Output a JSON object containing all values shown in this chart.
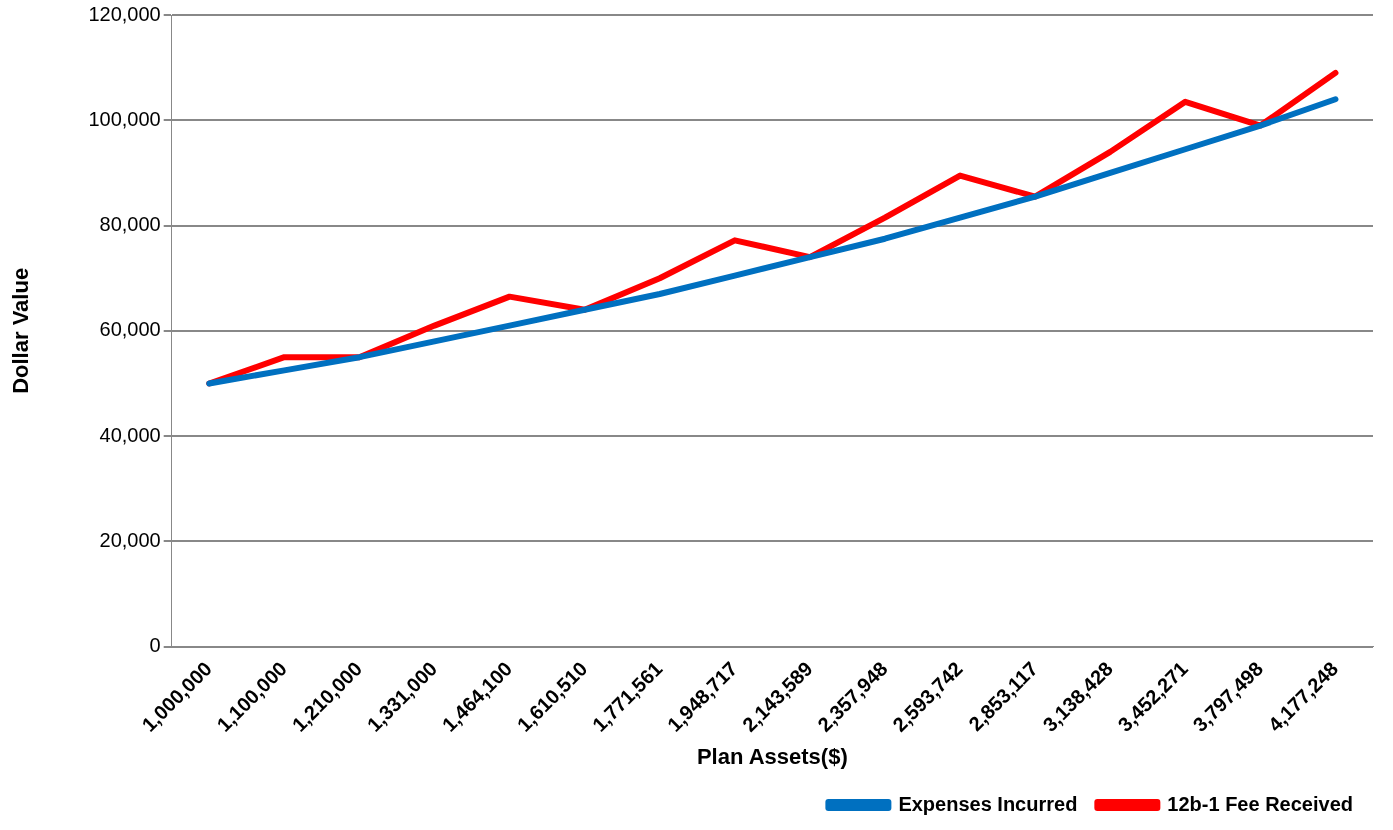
{
  "chart_data": {
    "type": "line",
    "xlabel": "Plan Assets($)",
    "ylabel": "Dollar Value",
    "categories": [
      "1,000,000",
      "1,100,000",
      "1,210,000",
      "1,331,000",
      "1,464,100",
      "1,610,510",
      "1,771,561",
      "1,948,717",
      "2,143,589",
      "2,357,948",
      "2,593,742",
      "2,853,117",
      "3,138,428",
      "3,452,271",
      "3,797,498",
      "4,177,248"
    ],
    "series": [
      {
        "name": "Expenses Incurred",
        "color": "#0070c0",
        "values": [
          50000,
          52500,
          55000,
          58000,
          61000,
          64000,
          67000,
          70500,
          74000,
          77500,
          81500,
          85500,
          90000,
          94500,
          99000,
          104000
        ]
      },
      {
        "name": "12b-1 Fee Received",
        "color": "#ff0000",
        "values": [
          50000,
          55000,
          55000,
          61000,
          66500,
          64000,
          70000,
          77200,
          74000,
          81500,
          89500,
          85500,
          94000,
          103500,
          99000,
          109000
        ]
      }
    ],
    "ylim": [
      0,
      120000
    ],
    "yticks": [
      {
        "value": 0,
        "label": "0"
      },
      {
        "value": 20000,
        "label": "20,000"
      },
      {
        "value": 40000,
        "label": "40,000"
      },
      {
        "value": 60000,
        "label": "60,000"
      },
      {
        "value": 80000,
        "label": "80,000"
      },
      {
        "value": 100000,
        "label": "100,000"
      },
      {
        "value": 120000,
        "label": "120,000"
      }
    ],
    "grid": "y",
    "legend": "bottom right",
    "marker": "none",
    "line_style": "solid"
  }
}
